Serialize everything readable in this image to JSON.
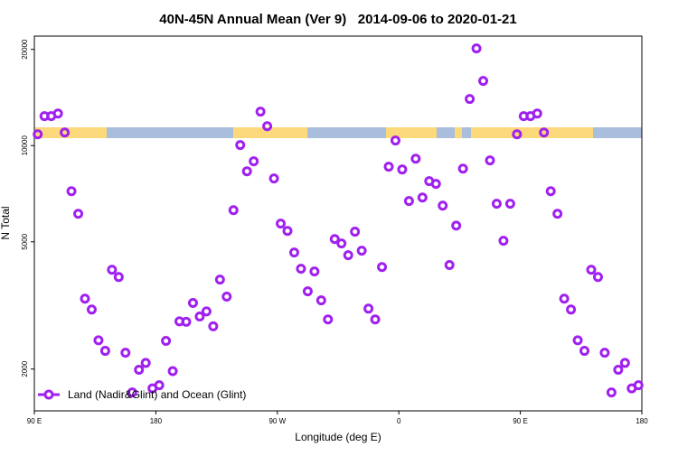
{
  "chart_data": {
    "type": "scatter",
    "title": "40N-45N Annual Mean (Ver 9)   2014-09-06 to 2020-01-21",
    "x_label": "Longitude (deg E)",
    "y_label": "N Total",
    "y_scale": "log",
    "grid": false,
    "legend_position": "bottom-left",
    "xlim": [
      90,
      540
    ],
    "xticks": [
      {
        "value": 90,
        "label": "90 E"
      },
      {
        "value": 180,
        "label": "180"
      },
      {
        "value": 270,
        "label": "90 W"
      },
      {
        "value": 360,
        "label": "0"
      },
      {
        "value": 450,
        "label": "90 E"
      },
      {
        "value": 540,
        "label": "180"
      }
    ],
    "ylim": [
      1480,
      22000
    ],
    "yticks": [
      2000,
      5000,
      10000,
      20000
    ],
    "x": [
      92.5,
      97.5,
      102.5,
      107.5,
      112.5,
      117.5,
      122.5,
      127.5,
      132.5,
      137.5,
      142.5,
      147.5,
      152.5,
      157.5,
      162.5,
      167.5,
      172.5,
      177.5,
      182.5,
      187.5,
      192.5,
      197.5,
      202.5,
      207.5,
      212.5,
      217.5,
      222.5,
      227.5,
      232.5,
      237.5,
      242.5,
      247.5,
      252.5,
      257.5,
      262.5,
      267.5,
      272.5,
      277.5,
      282.5,
      287.5,
      292.5,
      297.5,
      302.5,
      307.5,
      312.5,
      317.5,
      322.5,
      327.5,
      332.5,
      337.5,
      342.5,
      347.5,
      352.5,
      357.5,
      362.5,
      367.5,
      372.5,
      377.5,
      382.5,
      387.5,
      392.5,
      397.5,
      402.5,
      407.5,
      412.5,
      417.5,
      422.5,
      427.5,
      432.5,
      437.5,
      442.5,
      447.5,
      452.5,
      457.5,
      462.5,
      467.5,
      472.5,
      477.5,
      482.5,
      487.5,
      492.5,
      497.5,
      502.5,
      507.5,
      512.5,
      517.5,
      522.5,
      527.5,
      532.5,
      537.5
    ],
    "series": [
      {
        "name": "Land (Nadir&Glint) and Ocean (Glint)",
        "color": "#a020f0",
        "values": [
          10850,
          12360,
          12360,
          12600,
          10990,
          7200,
          6120,
          3320,
          3070,
          2460,
          2280,
          4090,
          3880,
          2250,
          1690,
          1990,
          2090,
          1740,
          1780,
          2450,
          1970,
          2820,
          2810,
          3220,
          2920,
          3030,
          2720,
          3810,
          3370,
          6280,
          10040,
          8310,
          8930,
          12770,
          11500,
          7890,
          5700,
          5410,
          4630,
          4120,
          3500,
          4040,
          3280,
          2860,
          5100,
          4940,
          4540,
          5380,
          4690,
          3090,
          2860,
          4170,
          8590,
          10370,
          8420,
          6710,
          9100,
          6880,
          7740,
          7590,
          6490,
          4230,
          5620,
          8470,
          13990,
          20130,
          15930,
          8990,
          6580,
          5040,
          6580,
          10850,
          12360,
          12360,
          12600,
          10990,
          7200,
          6120,
          3320,
          3070,
          2460,
          2280,
          4090,
          3880,
          2250,
          1690,
          1990,
          2090,
          1740,
          1780
        ]
      }
    ]
  }
}
